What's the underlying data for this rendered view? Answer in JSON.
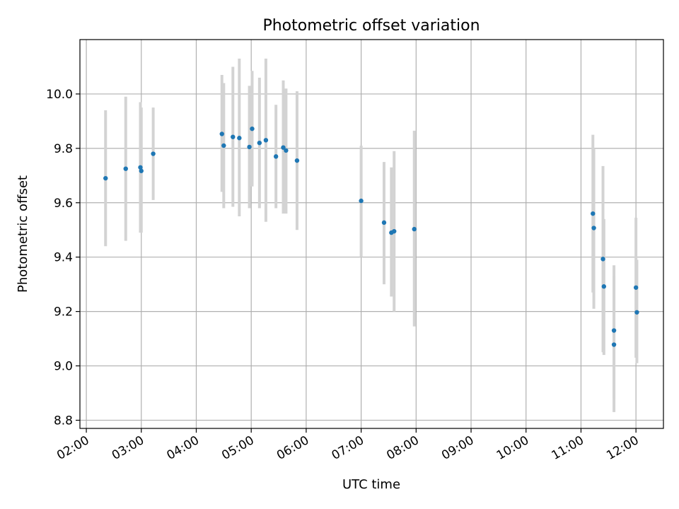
{
  "chart_data": {
    "type": "scatter",
    "title": "Photometric offset variation",
    "xlabel": "UTC time",
    "ylabel": "Photometric offset",
    "x_ticks": [
      "02:00",
      "03:00",
      "04:00",
      "05:00",
      "06:00",
      "07:00",
      "08:00",
      "09:00",
      "10:00",
      "11:00",
      "12:00"
    ],
    "y_ticks": [
      "8.8",
      "9.0",
      "9.2",
      "9.4",
      "9.6",
      "9.8",
      "10.0"
    ],
    "xlim": [
      "01:53",
      "12:30"
    ],
    "ylim": [
      8.77,
      10.2
    ],
    "grid": true,
    "legend": "none",
    "colors": {
      "points": "#1f77b4",
      "errorbars": "#d3d3d3",
      "grid": "#b0b0b0"
    },
    "series": [
      {
        "points": [
          {
            "x": "02:21",
            "y": 9.69,
            "low": 9.44,
            "high": 9.94
          },
          {
            "x": "02:43",
            "y": 9.725,
            "low": 9.46,
            "high": 9.99
          },
          {
            "x": "02:59",
            "y": 9.73,
            "low": 9.49,
            "high": 9.97
          },
          {
            "x": "03:00",
            "y": 9.717,
            "low": 9.49,
            "high": 9.95
          },
          {
            "x": "03:13",
            "y": 9.78,
            "low": 9.61,
            "high": 9.95
          },
          {
            "x": "04:28",
            "y": 9.853,
            "low": 9.64,
            "high": 10.07
          },
          {
            "x": "04:30",
            "y": 9.81,
            "low": 9.58,
            "high": 10.04
          },
          {
            "x": "04:40",
            "y": 9.842,
            "low": 9.585,
            "high": 10.1
          },
          {
            "x": "04:47",
            "y": 9.838,
            "low": 9.55,
            "high": 10.13
          },
          {
            "x": "04:58",
            "y": 9.805,
            "low": 9.58,
            "high": 10.03
          },
          {
            "x": "05:01",
            "y": 9.872,
            "low": 9.66,
            "high": 10.085
          },
          {
            "x": "05:09",
            "y": 9.82,
            "low": 9.58,
            "high": 10.06
          },
          {
            "x": "05:16",
            "y": 9.83,
            "low": 9.53,
            "high": 10.13
          },
          {
            "x": "05:27",
            "y": 9.77,
            "low": 9.58,
            "high": 9.96
          },
          {
            "x": "05:35",
            "y": 9.803,
            "low": 9.56,
            "high": 10.05
          },
          {
            "x": "05:38",
            "y": 9.792,
            "low": 9.56,
            "high": 10.02
          },
          {
            "x": "05:50",
            "y": 9.755,
            "low": 9.5,
            "high": 10.01
          },
          {
            "x": "07:00",
            "y": 9.607,
            "low": 9.4,
            "high": 9.81
          },
          {
            "x": "07:25",
            "y": 9.527,
            "low": 9.3,
            "high": 9.75
          },
          {
            "x": "07:33",
            "y": 9.49,
            "low": 9.255,
            "high": 9.73
          },
          {
            "x": "07:36",
            "y": 9.495,
            "low": 9.2,
            "high": 9.79
          },
          {
            "x": "07:58",
            "y": 9.503,
            "low": 9.145,
            "high": 9.865
          },
          {
            "x": "11:13",
            "y": 9.56,
            "low": 9.27,
            "high": 9.85
          },
          {
            "x": "11:14",
            "y": 9.507,
            "low": 9.21,
            "high": 9.8
          },
          {
            "x": "11:24",
            "y": 9.393,
            "low": 9.05,
            "high": 9.735
          },
          {
            "x": "11:25",
            "y": 9.292,
            "low": 9.04,
            "high": 9.54
          },
          {
            "x": "11:36",
            "y": 9.13,
            "low": 8.88,
            "high": 9.37
          },
          {
            "x": "11:36",
            "y": 9.078,
            "low": 8.83,
            "high": 9.33
          },
          {
            "x": "12:00",
            "y": 9.288,
            "low": 9.03,
            "high": 9.545
          },
          {
            "x": "12:01",
            "y": 9.197,
            "low": 9.01,
            "high": 9.39
          }
        ]
      }
    ]
  }
}
